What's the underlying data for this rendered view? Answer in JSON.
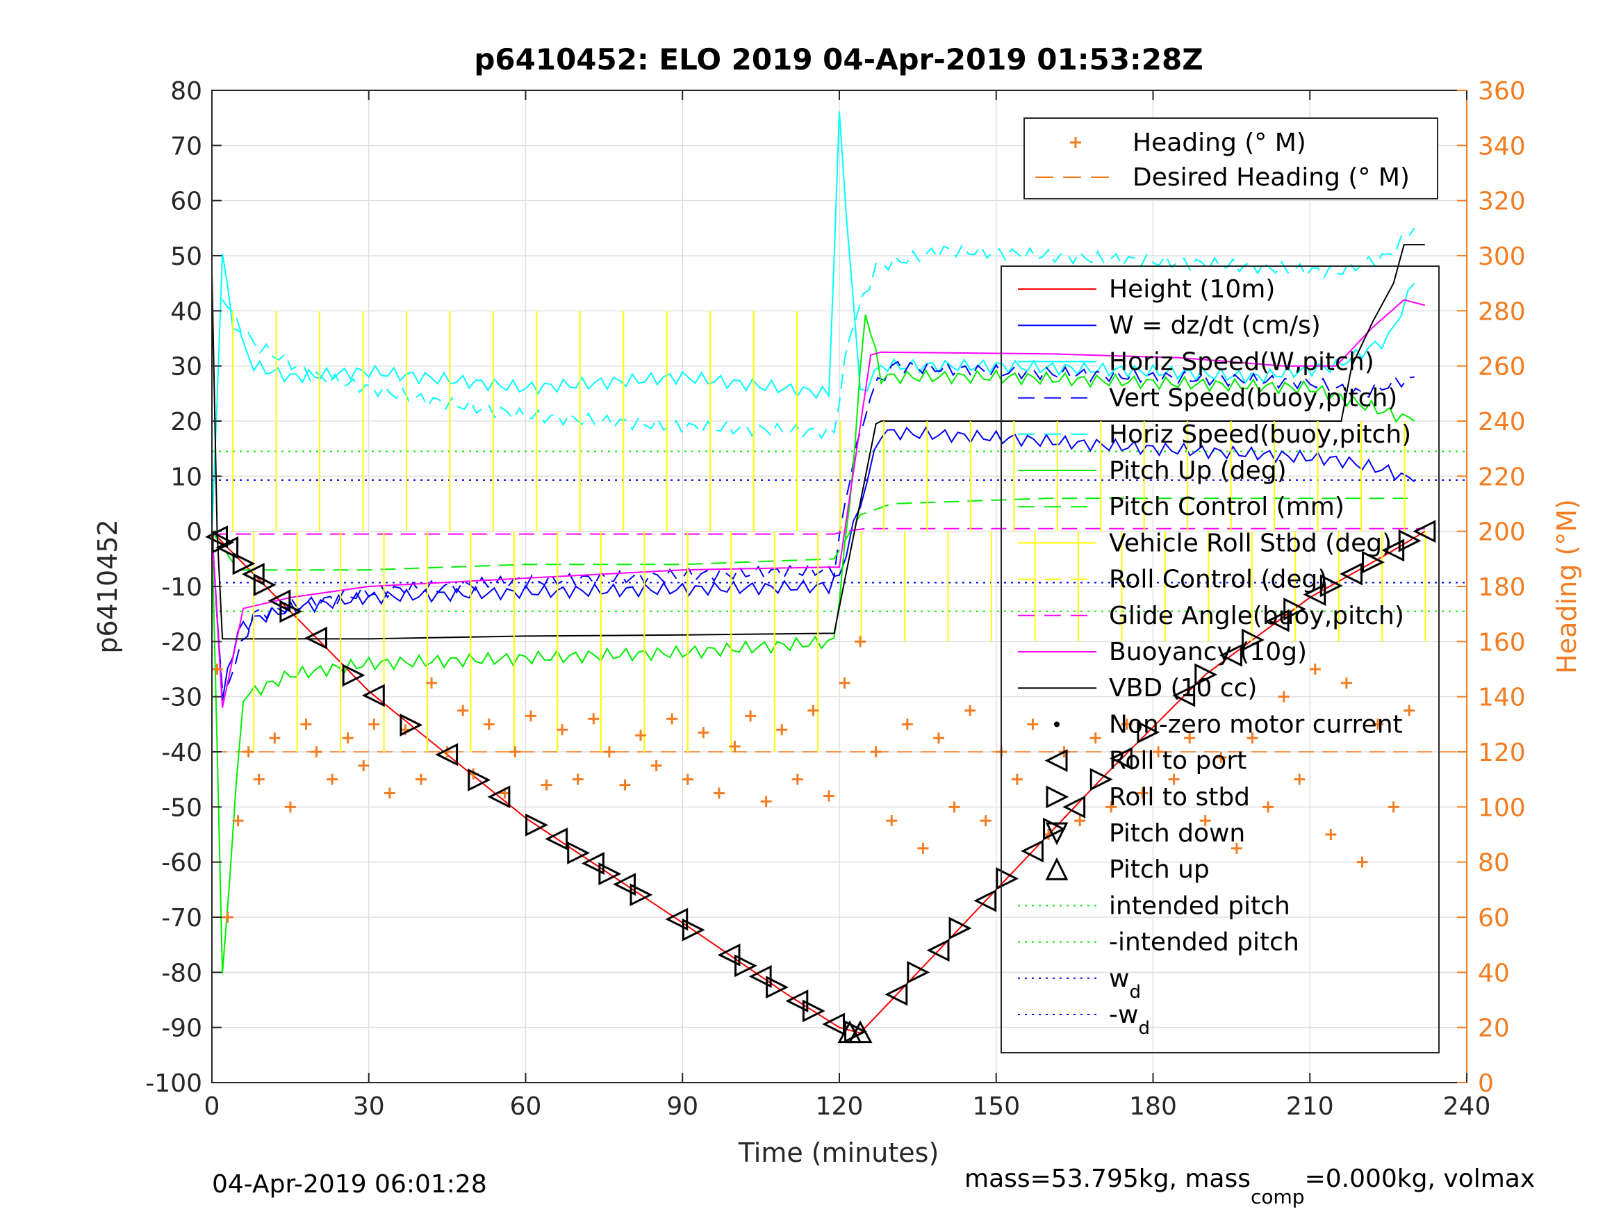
{
  "title": "p6410452: ELO 2019 04-Apr-2019 01:53:28Z",
  "footer_left": "04-Apr-2019 06:01:28",
  "footer_right": {
    "part1": "mass=53.795kg, mass",
    "sub": "comp",
    "part2": "=0.000kg, volmax"
  },
  "colors": {
    "heading": "#f47c20",
    "height": "#ff0000",
    "w": "#0000ff",
    "cyan": "#00ffff",
    "green": "#00ee00",
    "yellow": "#ffff00",
    "magenta": "#ff00ff",
    "black": "#000000"
  },
  "legend_heading": [
    {
      "label": "Heading (° M)",
      "marker": "plus",
      "color": "#f47c20"
    },
    {
      "label": "Desired Heading (° M)",
      "marker": "dash",
      "color": "#f47c20"
    }
  ],
  "legend_main": [
    {
      "label": "Height (10m)",
      "style": "solid",
      "color": "#ff0000"
    },
    {
      "label": "W = dz/dt (cm/s)",
      "style": "solid",
      "color": "#0000ff"
    },
    {
      "label": "Horiz Speed(W,pitch)",
      "style": "solid",
      "color": "#00ffff"
    },
    {
      "label": "Vert Speed(buoy,pitch)",
      "style": "dashed",
      "color": "#0000ff"
    },
    {
      "label": "Horiz Speed(buoy,pitch)",
      "style": "dashed",
      "color": "#00ffff"
    },
    {
      "label": "Pitch Up (deg)",
      "style": "solid",
      "color": "#00ee00"
    },
    {
      "label": "Pitch Control (mm)",
      "style": "dashed",
      "color": "#00ee00"
    },
    {
      "label": "Vehicle Roll Stbd (deg)",
      "style": "solid",
      "color": "#ffff00"
    },
    {
      "label": "Roll Control (deg)",
      "style": "dashed",
      "color": "#ffff00"
    },
    {
      "label": "Glide Angle(buoy,pitch)",
      "style": "dashed",
      "color": "#ff00ff"
    },
    {
      "label": "Buoyancy (10g)",
      "style": "solid",
      "color": "#ff00ff"
    },
    {
      "label": "VBD (10 cc)",
      "style": "solid",
      "color": "#000000"
    },
    {
      "label": "Non-zero motor current",
      "style": "dot",
      "color": "#000000"
    },
    {
      "label": "Roll to port",
      "style": "tri-left",
      "color": "#000000"
    },
    {
      "label": "Roll to stbd",
      "style": "tri-right",
      "color": "#000000"
    },
    {
      "label": "Pitch down",
      "style": "tri-down",
      "color": "#000000"
    },
    {
      "label": "Pitch up",
      "style": "tri-up",
      "color": "#000000"
    },
    {
      "label": "intended pitch",
      "style": "dotted",
      "color": "#00ee00"
    },
    {
      "label": "-intended pitch",
      "style": "dotted",
      "color": "#00ee00"
    },
    {
      "label": "w",
      "sub": "d",
      "style": "dotted",
      "color": "#0000ff"
    },
    {
      "label": "-w",
      "sub": "d",
      "style": "dotted",
      "color": "#0000ff"
    }
  ],
  "chart_data": {
    "type": "line",
    "xlabel": "Time (minutes)",
    "ylabel": "p6410452",
    "y2label": "Heading (°M)",
    "xlim": [
      0,
      240
    ],
    "ylim": [
      -100,
      80
    ],
    "y2lim": [
      0,
      360
    ],
    "xticks": [
      0,
      30,
      60,
      90,
      120,
      150,
      180,
      210,
      240
    ],
    "yticks": [
      -100,
      -90,
      -80,
      -70,
      -60,
      -50,
      -40,
      -30,
      -20,
      -10,
      0,
      10,
      20,
      30,
      40,
      50,
      60,
      70,
      80
    ],
    "y2ticks": [
      0,
      20,
      40,
      60,
      80,
      100,
      120,
      140,
      160,
      180,
      200,
      220,
      240,
      260,
      280,
      300,
      320,
      340,
      360
    ],
    "grid": true,
    "legend_placement": "top-right",
    "reference_lines": [
      {
        "name": "intended pitch",
        "y": 14.5
      },
      {
        "name": "-intended pitch",
        "y": -14.5
      },
      {
        "name": "w_d",
        "y": 9.3
      },
      {
        "name": "-w_d",
        "y": -9.3
      },
      {
        "name": "Desired Heading (° M)",
        "y2": 120
      }
    ],
    "series": [
      {
        "name": "Height (10m)",
        "x": [
          0,
          2,
          30,
          60,
          90,
          110,
          120,
          124,
          130,
          150,
          170,
          190,
          210,
          225,
          232
        ],
        "y": [
          0,
          -2,
          -29,
          -52,
          -71,
          -84,
          -90,
          -91,
          -85,
          -65,
          -45,
          -26,
          -12,
          -4,
          0
        ]
      },
      {
        "name": "W = dz/dt (cm/s)",
        "x": [
          0,
          2,
          5,
          8,
          15,
          30,
          60,
          90,
          118,
          120,
          124,
          128,
          150,
          180,
          200,
          215,
          225,
          230
        ],
        "y": [
          0,
          -30,
          -18,
          -16,
          -14,
          -12,
          -11,
          -10.5,
          -10,
          -8,
          5,
          18,
          17,
          15,
          14,
          13,
          11,
          9
        ]
      },
      {
        "name": "Horiz Speed(W,pitch)",
        "x": [
          0,
          2,
          4,
          8,
          15,
          30,
          60,
          90,
          118,
          120,
          124,
          128,
          150,
          180,
          200,
          215,
          225,
          230
        ],
        "y": [
          0,
          50,
          38,
          30,
          28,
          29,
          26,
          28,
          25,
          75,
          25,
          30,
          30,
          29,
          28,
          30,
          35,
          45
        ]
      },
      {
        "name": "Vert Speed(buoy,pitch)",
        "x": [
          0,
          2,
          8,
          30,
          60,
          90,
          119,
          122,
          126,
          130,
          150,
          180,
          210,
          220,
          230
        ],
        "y": [
          0,
          -30,
          -15,
          -11,
          -9,
          -8,
          -7,
          10,
          25,
          30,
          29,
          28,
          27,
          25,
          28
        ]
      },
      {
        "name": "Horiz Speed(buoy,pitch)",
        "x": [
          2,
          8,
          20,
          40,
          60,
          90,
          119,
          122,
          127,
          140,
          160,
          180,
          200,
          215,
          225,
          230
        ],
        "y": [
          42,
          34,
          28,
          24,
          21,
          19,
          18,
          36,
          48,
          51,
          50,
          49,
          48,
          47,
          50,
          55
        ]
      },
      {
        "name": "Pitch Up (deg)",
        "x": [
          0,
          2,
          6,
          15,
          30,
          60,
          90,
          119,
          122,
          125,
          128,
          150,
          180,
          210,
          230
        ],
        "y": [
          0,
          -80,
          -30,
          -26,
          -24,
          -23,
          -22,
          -20,
          5,
          40,
          28,
          28,
          27,
          26,
          20
        ]
      },
      {
        "name": "Pitch Control (mm)",
        "x": [
          0,
          5,
          30,
          60,
          90,
          119,
          124,
          130,
          160,
          190,
          220,
          230
        ],
        "y": [
          0,
          -7,
          -7,
          -6,
          -6,
          -5,
          3,
          5,
          6,
          6,
          6,
          6
        ]
      },
      {
        "name": "Glide Angle(buoy,pitch)",
        "x": [
          0,
          60,
          119,
          121,
          125,
          180,
          232
        ],
        "y": [
          -0.5,
          -0.5,
          -0.5,
          0,
          0.5,
          0.5,
          0.5
        ]
      },
      {
        "name": "Buoyancy (10g)",
        "x": [
          0,
          2,
          6,
          15,
          30,
          60,
          90,
          118,
          120,
          126,
          128,
          160,
          185,
          205,
          215,
          222,
          228,
          232
        ],
        "y": [
          0,
          -32,
          -14,
          -12,
          -10,
          -8.5,
          -7,
          -6.5,
          -6.5,
          32,
          32.5,
          32.2,
          31.5,
          30,
          30,
          37,
          42,
          41
        ]
      },
      {
        "name": "VBD (10 cc)",
        "x": [
          0,
          1,
          2,
          30,
          60,
          90,
          119,
          127,
          128,
          160,
          185,
          205,
          216,
          218,
          222,
          226,
          228,
          232
        ],
        "y": [
          47,
          0,
          -19.5,
          -19.5,
          -19,
          -18.8,
          -18.5,
          19.5,
          20,
          20,
          20,
          20,
          20,
          30,
          38,
          45,
          52,
          52
        ]
      },
      {
        "name": "Heading (° M)",
        "x": [
          1,
          3,
          5,
          7,
          9,
          12,
          15,
          18,
          20,
          23,
          26,
          29,
          31,
          34,
          37,
          40,
          42,
          45,
          48,
          50,
          53,
          56,
          58,
          61,
          64,
          67,
          70,
          73,
          76,
          79,
          82,
          85,
          88,
          91,
          94,
          97,
          100,
          103,
          106,
          109,
          112,
          115,
          118,
          121,
          124,
          127,
          130,
          133,
          136,
          139,
          142,
          145,
          148,
          151,
          154,
          157,
          160,
          163,
          166,
          169,
          172,
          175,
          178,
          181,
          184,
          187,
          190,
          193,
          196,
          199,
          202,
          205,
          208,
          211,
          214,
          217,
          220,
          223,
          226,
          229
        ],
        "y2": [
          150,
          60,
          95,
          120,
          110,
          125,
          100,
          130,
          120,
          110,
          125,
          115,
          130,
          105,
          128,
          110,
          145,
          120,
          135,
          112,
          130,
          105,
          120,
          133,
          108,
          128,
          110,
          132,
          120,
          108,
          126,
          115,
          132,
          110,
          127,
          105,
          122,
          133,
          102,
          128,
          110,
          135,
          104,
          145,
          160,
          120,
          95,
          130,
          85,
          125,
          100,
          135,
          95,
          120,
          110,
          130,
          90,
          120,
          95,
          125,
          100,
          130,
          105,
          120,
          110,
          125,
          95,
          118,
          85,
          125,
          100,
          140,
          110,
          150,
          90,
          145,
          80,
          130,
          100,
          135
        ]
      }
    ]
  }
}
